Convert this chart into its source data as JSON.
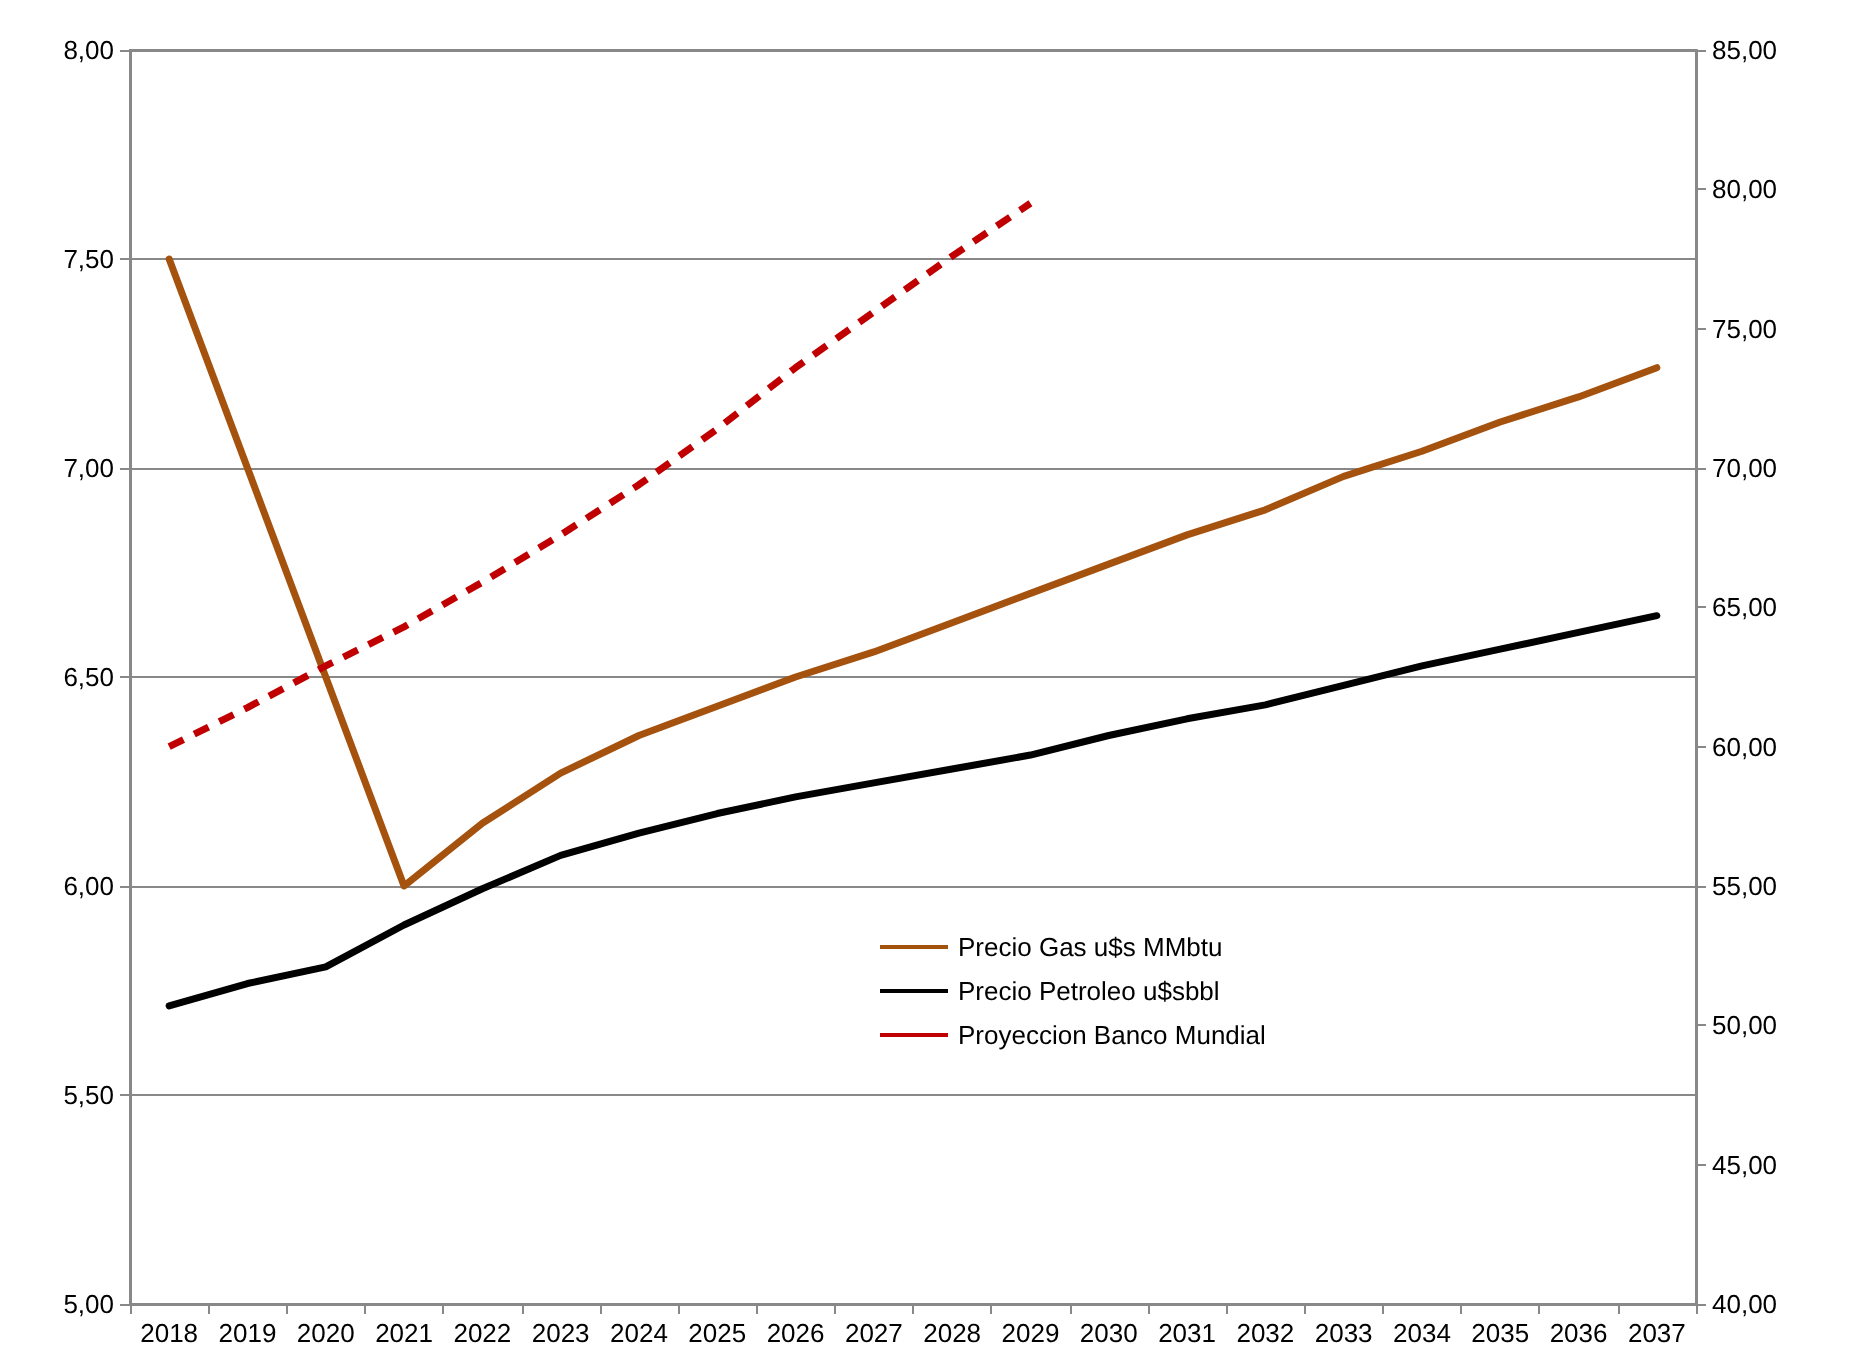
{
  "chart_data": {
    "type": "line",
    "categories": [
      "2018",
      "2019",
      "2020",
      "2021",
      "2022",
      "2023",
      "2024",
      "2025",
      "2026",
      "2027",
      "2028",
      "2029",
      "2030",
      "2031",
      "2032",
      "2033",
      "2034",
      "2035",
      "2036",
      "2037"
    ],
    "series": [
      {
        "name": "Precio Gas u$s MMbtu",
        "color": "#a5520f",
        "values": [
          7.5,
          7.0,
          6.5,
          6.0,
          6.15,
          6.27,
          6.36,
          6.43,
          6.5,
          6.56,
          6.63,
          6.7,
          6.77,
          6.84,
          6.9,
          6.98,
          7.04,
          7.11,
          7.17,
          7.24
        ]
      },
      {
        "name": "Precio Petroleo u$sbbl",
        "color": "#000000",
        "axis": "y2",
        "values": [
          50.7,
          51.5,
          52.1,
          53.6,
          54.9,
          56.1,
          56.9,
          57.6,
          58.2,
          58.7,
          59.2,
          59.7,
          60.4,
          61.0,
          61.5,
          62.2,
          62.9,
          63.5,
          64.1,
          64.7
        ]
      },
      {
        "name": "Proyeccion Banco Mundial",
        "color": "#c00000",
        "axis": "y2",
        "line_style": "dashed",
        "values": [
          60.0,
          61.4,
          62.9,
          64.3,
          65.9,
          67.6,
          69.4,
          71.4,
          73.6,
          75.6,
          77.6,
          79.5,
          null,
          null,
          null,
          null,
          null,
          null,
          null,
          null
        ]
      }
    ],
    "ylim": [
      5,
      8
    ],
    "yticks": [
      {
        "value": 5,
        "label": "5,00"
      },
      {
        "value": 5.5,
        "label": "5,50"
      },
      {
        "value": 6,
        "label": "6,00"
      },
      {
        "value": 6.5,
        "label": "6,50"
      },
      {
        "value": 7,
        "label": "7,00"
      },
      {
        "value": 7.5,
        "label": "7,50"
      },
      {
        "value": 8,
        "label": "8,00"
      }
    ],
    "y2lim": [
      40,
      85
    ],
    "y2ticks": [
      {
        "value": 40,
        "label": "40,00"
      },
      {
        "value": 45,
        "label": "45,00"
      },
      {
        "value": 50,
        "label": "50,00"
      },
      {
        "value": 55,
        "label": "55,00"
      },
      {
        "value": 60,
        "label": "60,00"
      },
      {
        "value": 65,
        "label": "65,00"
      },
      {
        "value": 70,
        "label": "70,00"
      },
      {
        "value": 75,
        "label": "75,00"
      },
      {
        "value": 80,
        "label": "80,00"
      },
      {
        "value": 85,
        "label": "85,00"
      }
    ],
    "grid": "y",
    "legend": "bottom",
    "marker": "none",
    "line_style": "solid"
  }
}
